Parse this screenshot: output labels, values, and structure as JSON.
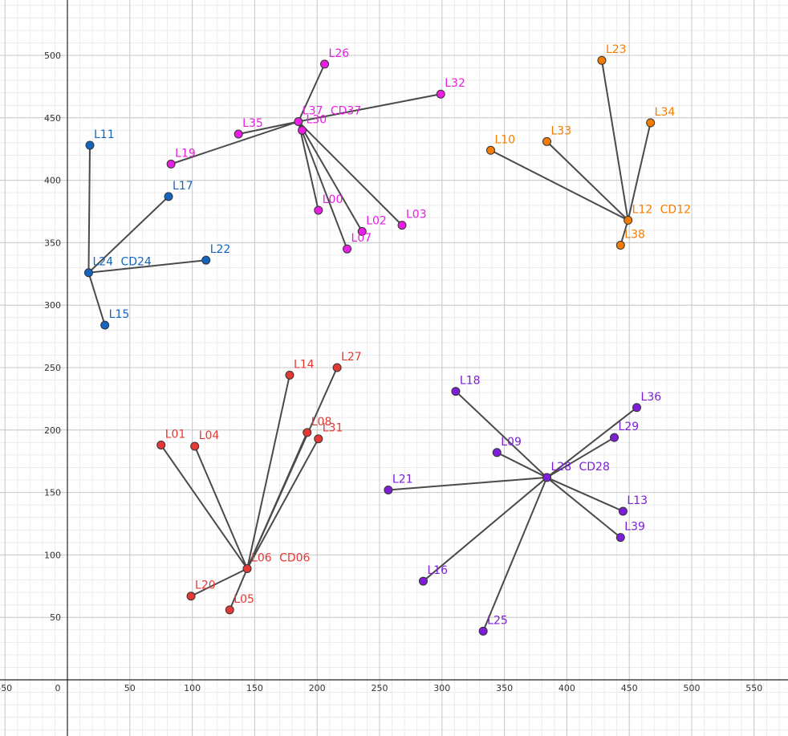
{
  "chart_data": {
    "type": "scatter",
    "xlim": [
      -55,
      580
    ],
    "ylim": [
      -38,
      545
    ],
    "x_ticks": [
      -50,
      0,
      50,
      100,
      150,
      200,
      250,
      300,
      350,
      400,
      450,
      500,
      550
    ],
    "y_ticks": [
      50,
      100,
      150,
      200,
      250,
      300,
      350,
      400,
      450,
      500
    ],
    "x_tick_labels": [
      "-50",
      "0",
      "50",
      "100",
      "150",
      "200",
      "250",
      "300",
      "350",
      "400",
      "450",
      "500",
      "550"
    ],
    "y_tick_labels": [
      "50",
      "100",
      "150",
      "200",
      "250",
      "300",
      "350",
      "400",
      "450",
      "500"
    ],
    "grid": true,
    "clusters": [
      {
        "color": "#1565c0",
        "centroid": {
          "label": "L24",
          "extra": "CD24",
          "x": 17,
          "y": 326
        },
        "points": [
          {
            "label": "L11",
            "x": 18,
            "y": 428
          },
          {
            "label": "L17",
            "x": 81,
            "y": 387
          },
          {
            "label": "L22",
            "x": 111,
            "y": 336
          },
          {
            "label": "L15",
            "x": 30,
            "y": 284
          }
        ]
      },
      {
        "color": "#e91ee3",
        "centroid": {
          "label": "L37",
          "extra": "CD37",
          "x": 185,
          "y": 447
        },
        "points": [
          {
            "label": "L26",
            "x": 206,
            "y": 493
          },
          {
            "label": "L32",
            "x": 299,
            "y": 469
          },
          {
            "label": "L35",
            "x": 137,
            "y": 437
          },
          {
            "label": "L19",
            "x": 83,
            "y": 413
          },
          {
            "label": "L30",
            "x": 188,
            "y": 440
          },
          {
            "label": "L00",
            "x": 201,
            "y": 376
          },
          {
            "label": "L02",
            "x": 236,
            "y": 359
          },
          {
            "label": "L07",
            "x": 224,
            "y": 345
          },
          {
            "label": "L03",
            "x": 268,
            "y": 364
          }
        ]
      },
      {
        "color": "#f57c00",
        "centroid": {
          "label": "L12",
          "extra": "CD12",
          "x": 449,
          "y": 368
        },
        "points": [
          {
            "label": "L23",
            "x": 428,
            "y": 496
          },
          {
            "label": "L34",
            "x": 467,
            "y": 446
          },
          {
            "label": "L10",
            "x": 339,
            "y": 424
          },
          {
            "label": "L33",
            "x": 384,
            "y": 431
          },
          {
            "label": "L38",
            "x": 443,
            "y": 348
          }
        ]
      },
      {
        "color": "#e53935",
        "centroid": {
          "label": "L06",
          "extra": "CD06",
          "x": 144,
          "y": 89
        },
        "points": [
          {
            "label": "L14",
            "x": 178,
            "y": 244
          },
          {
            "label": "L27",
            "x": 216,
            "y": 250
          },
          {
            "label": "L08",
            "x": 192,
            "y": 198
          },
          {
            "label": "L31",
            "x": 201,
            "y": 193
          },
          {
            "label": "L01",
            "x": 75,
            "y": 188
          },
          {
            "label": "L04",
            "x": 102,
            "y": 187
          },
          {
            "label": "L20",
            "x": 99,
            "y": 67
          },
          {
            "label": "L05",
            "x": 130,
            "y": 56
          }
        ]
      },
      {
        "color": "#7e1ed9",
        "centroid": {
          "label": "L28",
          "extra": "CD28",
          "x": 384,
          "y": 162
        },
        "points": [
          {
            "label": "L18",
            "x": 311,
            "y": 231
          },
          {
            "label": "L09",
            "x": 344,
            "y": 182
          },
          {
            "label": "L36",
            "x": 456,
            "y": 218
          },
          {
            "label": "L29",
            "x": 438,
            "y": 194
          },
          {
            "label": "L21",
            "x": 257,
            "y": 152
          },
          {
            "label": "L13",
            "x": 445,
            "y": 135
          },
          {
            "label": "L39",
            "x": 443,
            "y": 114
          },
          {
            "label": "L16",
            "x": 285,
            "y": 79
          },
          {
            "label": "L25",
            "x": 333,
            "y": 39
          }
        ]
      }
    ]
  }
}
